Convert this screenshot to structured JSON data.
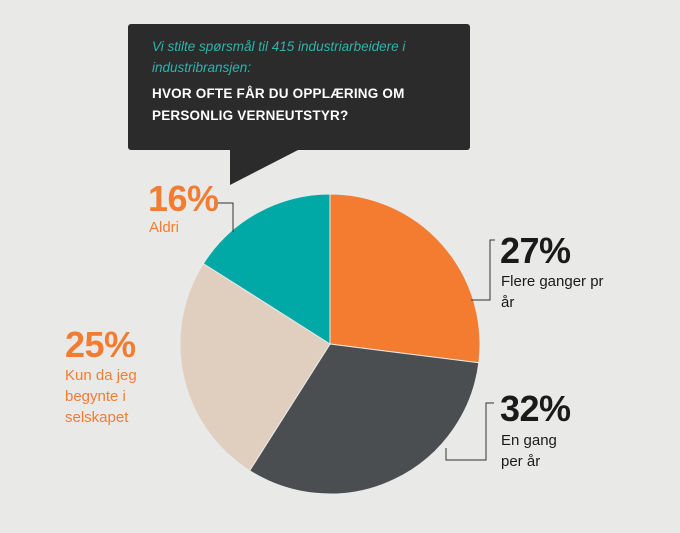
{
  "bubble": {
    "intro": "Vi stilte spørsmål til 415 industriarbeidere i industribransjen:",
    "question": "HVOR OFTE FÅR DU OPPLÆRING OM PERSONLIG VERNEUTSTYR?"
  },
  "colors": {
    "background": "#e9e9e8",
    "bubble": "#2b2b2b",
    "accent_orange": "#f47c30",
    "accent_teal": "#2fb3ad",
    "dark_text": "#1a1a1a"
  },
  "chart_data": {
    "type": "pie",
    "start_angle_deg": 0,
    "direction": "clockwise",
    "title": "",
    "slices": [
      {
        "label": "Flere ganger pr år",
        "value": 27,
        "display": "27%",
        "color": "#f47c30"
      },
      {
        "label": "En gang per år",
        "value": 32,
        "display": "32%",
        "color": "#4b4e51"
      },
      {
        "label": "Kun da jeg begynte i selskapet",
        "value": 25,
        "display": "25%",
        "color": "#e0cfbf"
      },
      {
        "label": "Aldri",
        "value": 16,
        "display": "16%",
        "color": "#00a8a6"
      }
    ]
  }
}
